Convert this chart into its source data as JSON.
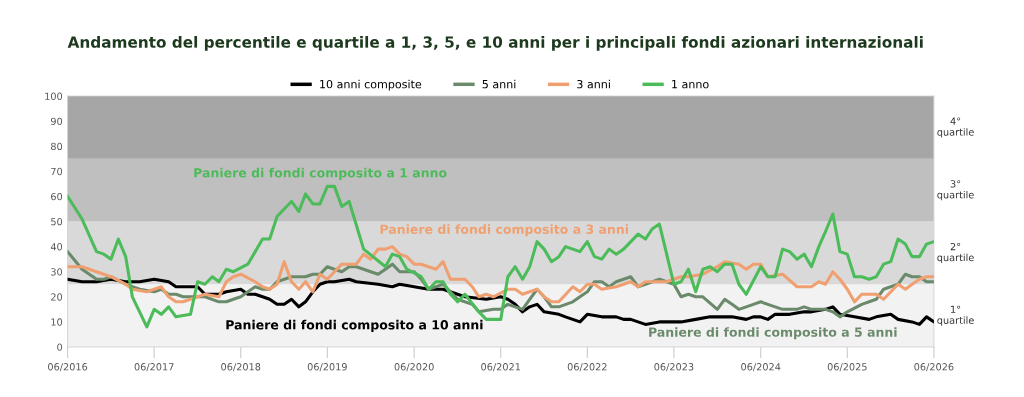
{
  "chart_data": {
    "type": "line",
    "title": "Andamento del percentile e quartile a 1, 3, 5, e 10 anni per i principali fondi azionari internazionali",
    "legend": "top",
    "line_style": "solid",
    "xlim": [
      "2016-06",
      "2026-06"
    ],
    "xticks": [
      {
        "value": "2016-06",
        "label": "06/2016"
      },
      {
        "value": "2017-06",
        "label": "06/2017"
      },
      {
        "value": "2018-06",
        "label": "06/2018"
      },
      {
        "value": "2019-06",
        "label": "06/2019"
      },
      {
        "value": "2020-06",
        "label": "06/2020"
      },
      {
        "value": "2021-06",
        "label": "06/2021"
      },
      {
        "value": "2022-06",
        "label": "06/2022"
      },
      {
        "value": "2023-06",
        "label": "06/2023"
      },
      {
        "value": "2024-06",
        "label": "06/2024"
      },
      {
        "value": "2025-06",
        "label": "06/2025"
      },
      {
        "value": "2026-06",
        "label": "06/2026"
      }
    ],
    "ylim": [
      0,
      100
    ],
    "yticks": [
      0,
      10,
      20,
      30,
      40,
      50,
      60,
      70,
      80,
      90,
      100
    ],
    "bands": [
      {
        "axis": "y",
        "from": 0,
        "to": 25,
        "label": "1°\nquartile",
        "color": "#f2f2f2"
      },
      {
        "axis": "y",
        "from": 25,
        "to": 50,
        "label": "2°\nquartile",
        "color": "#d9d9d9"
      },
      {
        "axis": "y",
        "from": 50,
        "to": 75,
        "label": "3°\nquartile",
        "color": "#bfbfbf"
      },
      {
        "axis": "y",
        "from": 75,
        "to": 100,
        "label": "4°\nquartile",
        "color": "#a6a6a6"
      }
    ],
    "series": [
      {
        "name": "10 anni composite",
        "color": "#000000",
        "x": [
          "2016-06",
          "2016-08",
          "2016-10",
          "2016-12",
          "2017-02",
          "2017-04",
          "2017-06",
          "2017-08",
          "2017-09",
          "2017-11",
          "2017-12",
          "2018-01",
          "2018-03",
          "2018-04",
          "2018-06",
          "2018-07",
          "2018-08",
          "2018-09",
          "2018-10",
          "2018-11",
          "2018-12",
          "2019-01",
          "2019-02",
          "2019-03",
          "2019-04",
          "2019-05",
          "2019-06",
          "2019-07",
          "2019-09",
          "2019-10",
          "2020-01",
          "2020-03",
          "2020-04",
          "2020-06",
          "2020-08",
          "2020-10",
          "2020-12",
          "2021-01",
          "2021-04",
          "2021-06",
          "2021-07",
          "2021-08",
          "2021-09",
          "2021-10",
          "2021-11",
          "2021-12",
          "2022-02",
          "2022-03",
          "2022-05",
          "2022-06",
          "2022-08",
          "2022-10",
          "2022-11",
          "2022-12",
          "2023-02",
          "2023-04",
          "2023-05",
          "2023-07",
          "2023-09",
          "2023-11",
          "2024-02",
          "2024-04",
          "2024-05",
          "2024-06",
          "2024-07",
          "2024-08",
          "2024-10",
          "2024-12",
          "2025-01",
          "2025-03",
          "2025-04",
          "2025-05",
          "2025-07",
          "2025-09",
          "2025-10",
          "2025-12",
          "2026-01",
          "2026-03",
          "2026-04",
          "2026-05",
          "2026-06"
        ],
        "values": [
          27,
          26,
          26,
          27,
          26,
          26,
          27,
          26,
          24,
          24,
          24,
          21,
          21,
          22,
          23,
          21,
          21,
          20,
          19,
          17,
          17,
          19,
          16,
          18,
          22,
          25,
          26,
          26,
          27,
          26,
          25,
          24,
          25,
          24,
          23,
          23,
          21,
          20,
          19,
          20,
          19,
          17,
          14,
          16,
          17,
          14,
          13,
          12,
          10,
          13,
          12,
          12,
          11,
          11,
          9,
          10,
          10,
          10,
          11,
          12,
          12,
          11,
          12,
          12,
          11,
          13,
          13,
          14,
          14,
          15,
          16,
          13,
          12,
          11,
          12,
          13,
          11,
          10,
          9,
          12,
          10
        ]
      },
      {
        "name": "5 anni",
        "color": "#6b8a6b",
        "x": [
          "2016-06",
          "2016-08",
          "2016-10",
          "2016-11",
          "2016-12",
          "2017-02",
          "2017-03",
          "2017-04",
          "2017-06",
          "2017-07",
          "2017-08",
          "2017-09",
          "2017-10",
          "2017-11",
          "2018-01",
          "2018-03",
          "2018-04",
          "2018-05",
          "2018-06",
          "2018-08",
          "2018-09",
          "2018-10",
          "2018-11",
          "2019-01",
          "2019-02",
          "2019-03",
          "2019-04",
          "2019-05",
          "2019-06",
          "2019-07",
          "2019-08",
          "2019-09",
          "2019-10",
          "2019-11",
          "2019-12",
          "2020-01",
          "2020-02",
          "2020-03",
          "2020-04",
          "2020-06",
          "2020-07",
          "2020-08",
          "2020-10",
          "2020-11",
          "2020-12",
          "2021-02",
          "2021-03",
          "2021-05",
          "2021-06",
          "2021-07",
          "2021-08",
          "2021-09",
          "2021-10",
          "2021-11",
          "2021-12",
          "2022-01",
          "2022-02",
          "2022-04",
          "2022-05",
          "2022-06",
          "2022-07",
          "2022-08",
          "2022-09",
          "2022-10",
          "2022-11",
          "2022-12",
          "2023-01",
          "2023-02",
          "2023-04",
          "2023-06",
          "2023-07",
          "2023-08",
          "2023-09",
          "2023-10",
          "2023-12",
          "2024-01",
          "2024-02",
          "2024-03",
          "2024-04",
          "2024-05",
          "2024-06",
          "2024-08",
          "2024-09",
          "2024-11",
          "2024-12",
          "2025-01",
          "2025-03",
          "2025-04",
          "2025-05",
          "2025-06",
          "2025-08",
          "2025-09",
          "2025-10",
          "2025-11",
          "2025-12",
          "2026-01",
          "2026-02",
          "2026-03",
          "2026-04",
          "2026-05",
          "2026-06"
        ],
        "values": [
          38,
          31,
          27,
          27,
          28,
          25,
          24,
          23,
          22,
          23,
          21,
          21,
          20,
          20,
          20,
          18,
          18,
          19,
          20,
          24,
          23,
          23,
          26,
          28,
          28,
          28,
          29,
          29,
          32,
          31,
          30,
          32,
          32,
          31,
          30,
          29,
          31,
          33,
          30,
          30,
          27,
          23,
          25,
          22,
          19,
          17,
          14,
          15,
          15,
          17,
          16,
          15,
          19,
          23,
          20,
          16,
          16,
          18,
          20,
          22,
          26,
          26,
          24,
          26,
          27,
          28,
          24,
          25,
          27,
          25,
          20,
          21,
          20,
          20,
          15,
          19,
          17,
          15,
          16,
          17,
          18,
          16,
          15,
          15,
          16,
          15,
          15,
          14,
          12,
          14,
          17,
          18,
          19,
          23,
          24,
          25,
          29,
          28,
          28,
          26,
          26
        ]
      },
      {
        "name": "3 anni",
        "color": "#f0a070",
        "x": [
          "2016-06",
          "2016-08",
          "2016-10",
          "2016-11",
          "2016-12",
          "2017-02",
          "2017-03",
          "2017-05",
          "2017-06",
          "2017-07",
          "2017-08",
          "2017-09",
          "2017-10",
          "2017-12",
          "2018-01",
          "2018-03",
          "2018-04",
          "2018-05",
          "2018-06",
          "2018-08",
          "2018-09",
          "2018-10",
          "2018-11",
          "2018-12",
          "2019-01",
          "2019-02",
          "2019-03",
          "2019-04",
          "2019-05",
          "2019-06",
          "2019-07",
          "2019-08",
          "2019-10",
          "2019-11",
          "2019-12",
          "2020-01",
          "2020-02",
          "2020-03",
          "2020-04",
          "2020-05",
          "2020-06",
          "2020-07",
          "2020-09",
          "2020-10",
          "2020-11",
          "2020-12",
          "2021-01",
          "2021-02",
          "2021-03",
          "2021-04",
          "2021-05",
          "2021-07",
          "2021-08",
          "2021-09",
          "2021-10",
          "2021-11",
          "2021-12",
          "2022-01",
          "2022-02",
          "2022-04",
          "2022-05",
          "2022-06",
          "2022-07",
          "2022-08",
          "2022-10",
          "2022-12",
          "2023-01",
          "2023-02",
          "2023-04",
          "2023-05",
          "2023-07",
          "2023-08",
          "2023-10",
          "2023-12",
          "2024-01",
          "2024-03",
          "2024-04",
          "2024-05",
          "2024-06",
          "2024-07",
          "2024-09",
          "2024-11",
          "2025-01",
          "2025-02",
          "2025-03",
          "2025-04",
          "2025-05",
          "2025-06",
          "2025-07",
          "2025-08",
          "2025-10",
          "2025-11",
          "2026-01",
          "2026-02",
          "2026-03",
          "2026-04",
          "2026-05",
          "2026-06"
        ],
        "values": [
          32,
          32,
          30,
          29,
          28,
          25,
          23,
          22,
          23,
          24,
          20,
          18,
          18,
          20,
          21,
          20,
          26,
          28,
          29,
          26,
          24,
          23,
          25,
          34,
          26,
          23,
          26,
          22,
          29,
          27,
          30,
          33,
          33,
          37,
          35,
          39,
          39,
          40,
          37,
          36,
          33,
          33,
          31,
          34,
          27,
          27,
          27,
          24,
          20,
          21,
          20,
          23,
          23,
          21,
          22,
          23,
          20,
          18,
          18,
          24,
          22,
          25,
          25,
          23,
          24,
          26,
          24,
          26,
          26,
          26,
          28,
          28,
          29,
          32,
          34,
          33,
          31,
          33,
          33,
          28,
          29,
          24,
          24,
          26,
          25,
          30,
          27,
          23,
          18,
          21,
          21,
          19,
          25,
          23,
          25,
          27,
          28,
          28
        ]
      },
      {
        "name": "1 anno",
        "color": "#4cbb5a",
        "x": [
          "2016-06",
          "2016-08",
          "2016-10",
          "2016-11",
          "2016-12",
          "2017-01",
          "2017-02",
          "2017-03",
          "2017-05",
          "2017-06",
          "2017-07",
          "2017-08",
          "2017-09",
          "2017-11",
          "2017-12",
          "2018-01",
          "2018-02",
          "2018-03",
          "2018-04",
          "2018-05",
          "2018-07",
          "2018-08",
          "2018-09",
          "2018-10",
          "2018-11",
          "2018-12",
          "2019-01",
          "2019-02",
          "2019-03",
          "2019-04",
          "2019-05",
          "2019-06",
          "2019-07",
          "2019-08",
          "2019-09",
          "2019-11",
          "2020-02",
          "2020-03",
          "2020-04",
          "2020-05",
          "2020-07",
          "2020-08",
          "2020-09",
          "2020-10",
          "2020-11",
          "2020-12",
          "2021-01",
          "2021-03",
          "2021-04",
          "2021-06",
          "2021-07",
          "2021-08",
          "2021-09",
          "2021-10",
          "2021-11",
          "2021-12",
          "2022-01",
          "2022-02",
          "2022-03",
          "2022-04",
          "2022-05",
          "2022-06",
          "2022-07",
          "2022-08",
          "2022-09",
          "2022-10",
          "2022-11",
          "2023-01",
          "2023-02",
          "2023-03",
          "2023-04",
          "2023-06",
          "2023-07",
          "2023-08",
          "2023-09",
          "2023-10",
          "2023-11",
          "2023-12",
          "2024-01",
          "2024-02",
          "2024-03",
          "2024-04",
          "2024-06",
          "2024-07",
          "2024-08",
          "2024-09",
          "2024-10",
          "2024-11",
          "2024-12",
          "2025-01",
          "2025-02",
          "2025-03",
          "2025-04",
          "2025-05",
          "2025-06",
          "2025-07",
          "2025-08",
          "2025-09",
          "2025-10",
          "2025-11",
          "2025-12",
          "2026-01",
          "2026-02",
          "2026-03",
          "2026-04",
          "2026-05",
          "2026-06"
        ],
        "values": [
          60,
          51,
          38,
          37,
          35,
          43,
          36,
          20,
          8,
          15,
          13,
          16,
          12,
          13,
          26,
          25,
          28,
          26,
          31,
          30,
          33,
          38,
          43,
          43,
          52,
          55,
          58,
          54,
          61,
          57,
          57,
          64,
          64,
          56,
          58,
          39,
          32,
          37,
          36,
          31,
          28,
          23,
          26,
          26,
          21,
          18,
          21,
          14,
          11,
          11,
          28,
          32,
          27,
          32,
          42,
          39,
          34,
          36,
          40,
          39,
          38,
          42,
          36,
          35,
          39,
          37,
          39,
          45,
          43,
          47,
          49,
          25,
          26,
          31,
          22,
          31,
          32,
          30,
          33,
          33,
          25,
          21,
          32,
          28,
          28,
          39,
          38,
          35,
          37,
          32,
          40,
          46,
          53,
          38,
          37,
          28,
          28,
          27,
          28,
          33,
          34,
          43,
          41,
          36,
          36,
          41,
          42
        ]
      }
    ],
    "annotations": [
      "Paniere di fondi composito a 10 anni",
      "Paniere di fondi composito a 5 anni",
      "Paniere di fondi composito a 3 anni",
      "Paniere di fondi composito a 1 anno"
    ]
  }
}
